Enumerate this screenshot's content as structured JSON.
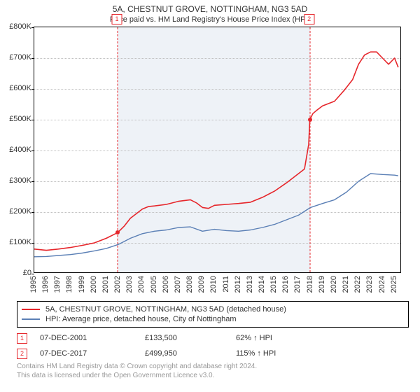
{
  "title": "5A, CHESTNUT GROVE, NOTTINGHAM, NG3 5AD",
  "subtitle": "Price paid vs. HM Land Registry's House Price Index (HPI)",
  "chart": {
    "type": "line",
    "background_color": "#ffffff",
    "grid_color": "#bfbfbf",
    "marker_vline_color": "#e6262b",
    "marker_vline_dash": "2 3",
    "shade_color": "#eef2f7",
    "x": {
      "min": 1995.0,
      "max": 2025.6,
      "tick_labels": [
        "1995",
        "1996",
        "1997",
        "1998",
        "1999",
        "2000",
        "2001",
        "2002",
        "2003",
        "2004",
        "2005",
        "2006",
        "2007",
        "2008",
        "2009",
        "2010",
        "2011",
        "2012",
        "2013",
        "2014",
        "2015",
        "2016",
        "2017",
        "2018",
        "2019",
        "2020",
        "2021",
        "2022",
        "2023",
        "2024",
        "2025"
      ],
      "tick_values": [
        1995,
        1996,
        1997,
        1998,
        1999,
        2000,
        2001,
        2002,
        2003,
        2004,
        2005,
        2006,
        2007,
        2008,
        2009,
        2010,
        2011,
        2012,
        2013,
        2014,
        2015,
        2016,
        2017,
        2018,
        2019,
        2020,
        2021,
        2022,
        2023,
        2024,
        2025
      ],
      "label_fontsize": 11
    },
    "y": {
      "min": 0,
      "max": 800000,
      "tick_labels": [
        "£0",
        "£100K",
        "£200K",
        "£300K",
        "£400K",
        "£500K",
        "£600K",
        "£700K",
        "£800K"
      ],
      "tick_values": [
        0,
        100000,
        200000,
        300000,
        400000,
        500000,
        600000,
        700000,
        800000
      ],
      "label_fontsize": 11
    },
    "event_markers": [
      {
        "label": "1",
        "year_frac": 2001.94
      },
      {
        "label": "2",
        "year_frac": 2017.94
      }
    ],
    "sale_dots": [
      {
        "year_frac": 2001.94,
        "value": 133500,
        "color": "#e6262b"
      },
      {
        "year_frac": 2017.94,
        "value": 499950,
        "color": "#e6262b"
      }
    ],
    "series": [
      {
        "name": "subject",
        "color": "#e6262b",
        "width": 1.6,
        "points": [
          [
            1995.0,
            80000
          ],
          [
            1996.0,
            76000
          ],
          [
            1997.0,
            80000
          ],
          [
            1998.0,
            85000
          ],
          [
            1999.0,
            92000
          ],
          [
            2000.0,
            100000
          ],
          [
            2001.0,
            115000
          ],
          [
            2001.94,
            133500
          ],
          [
            2002.5,
            155000
          ],
          [
            2003.0,
            180000
          ],
          [
            2003.5,
            195000
          ],
          [
            2004.0,
            210000
          ],
          [
            2004.5,
            218000
          ],
          [
            2005.0,
            220000
          ],
          [
            2006.0,
            225000
          ],
          [
            2007.0,
            235000
          ],
          [
            2008.0,
            240000
          ],
          [
            2008.5,
            230000
          ],
          [
            2009.0,
            215000
          ],
          [
            2009.5,
            212000
          ],
          [
            2010.0,
            222000
          ],
          [
            2011.0,
            225000
          ],
          [
            2012.0,
            228000
          ],
          [
            2013.0,
            232000
          ],
          [
            2014.0,
            248000
          ],
          [
            2015.0,
            268000
          ],
          [
            2016.0,
            295000
          ],
          [
            2016.5,
            310000
          ],
          [
            2017.0,
            325000
          ],
          [
            2017.5,
            340000
          ],
          [
            2017.85,
            420000
          ],
          [
            2017.94,
            499950
          ],
          [
            2018.2,
            520000
          ],
          [
            2018.5,
            530000
          ],
          [
            2019.0,
            545000
          ],
          [
            2020.0,
            560000
          ],
          [
            2020.8,
            595000
          ],
          [
            2021.5,
            630000
          ],
          [
            2022.0,
            680000
          ],
          [
            2022.5,
            710000
          ],
          [
            2023.0,
            720000
          ],
          [
            2023.5,
            720000
          ],
          [
            2024.0,
            700000
          ],
          [
            2024.5,
            680000
          ],
          [
            2025.0,
            700000
          ],
          [
            2025.3,
            670000
          ]
        ]
      },
      {
        "name": "hpi",
        "color": "#5a7fb5",
        "width": 1.4,
        "points": [
          [
            1995.0,
            55000
          ],
          [
            1996.0,
            56000
          ],
          [
            1997.0,
            59000
          ],
          [
            1998.0,
            62000
          ],
          [
            1999.0,
            67000
          ],
          [
            2000.0,
            74000
          ],
          [
            2001.0,
            82000
          ],
          [
            2002.0,
            95000
          ],
          [
            2003.0,
            115000
          ],
          [
            2004.0,
            130000
          ],
          [
            2005.0,
            138000
          ],
          [
            2006.0,
            142000
          ],
          [
            2007.0,
            150000
          ],
          [
            2008.0,
            152000
          ],
          [
            2009.0,
            138000
          ],
          [
            2010.0,
            144000
          ],
          [
            2011.0,
            140000
          ],
          [
            2012.0,
            138000
          ],
          [
            2013.0,
            142000
          ],
          [
            2014.0,
            150000
          ],
          [
            2015.0,
            160000
          ],
          [
            2016.0,
            175000
          ],
          [
            2017.0,
            190000
          ],
          [
            2018.0,
            215000
          ],
          [
            2019.0,
            228000
          ],
          [
            2020.0,
            240000
          ],
          [
            2021.0,
            265000
          ],
          [
            2022.0,
            300000
          ],
          [
            2023.0,
            325000
          ],
          [
            2024.0,
            322000
          ],
          [
            2025.0,
            320000
          ],
          [
            2025.3,
            318000
          ]
        ]
      }
    ]
  },
  "legend": {
    "items": [
      {
        "color": "#e6262b",
        "label": "5A, CHESTNUT GROVE, NOTTINGHAM, NG3 5AD (detached house)"
      },
      {
        "color": "#5a7fb5",
        "label": "HPI: Average price, detached house, City of Nottingham"
      }
    ]
  },
  "sales": [
    {
      "num": "1",
      "date": "07-DEC-2001",
      "price": "£133,500",
      "relation": "62% ↑ HPI"
    },
    {
      "num": "2",
      "date": "07-DEC-2017",
      "price": "£499,950",
      "relation": "115% ↑ HPI"
    }
  ],
  "footer_line1": "Contains HM Land Registry data © Crown copyright and database right 2024.",
  "footer_line2": "This data is licensed under the Open Government Licence v3.0."
}
